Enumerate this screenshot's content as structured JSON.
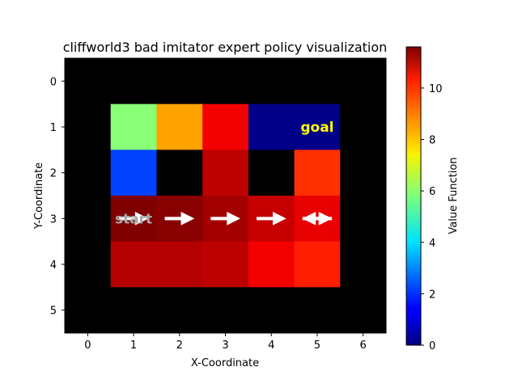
{
  "chart_data": {
    "type": "heatmap",
    "title": "cliffworld3 bad imitator expert policy visualization",
    "xlabel": "X-Coordinate",
    "ylabel": "Y-Coordinate",
    "x_ticks": [
      "0",
      "1",
      "2",
      "3",
      "4",
      "5",
      "6"
    ],
    "y_ticks": [
      "0",
      "1",
      "2",
      "3",
      "4",
      "5"
    ],
    "colormap": "jet",
    "colorbar": {
      "label": "Value Function",
      "range": [
        0,
        11.6
      ],
      "ticks": [
        "0",
        "2",
        "4",
        "6",
        "8",
        "10"
      ]
    },
    "grid": {
      "cols": 7,
      "rows": 6,
      "blocked_color": "#000000",
      "values": [
        [
          null,
          null,
          null,
          null,
          null,
          null,
          null
        ],
        [
          null,
          5.9,
          8.3,
          10.3,
          0.1,
          0.1,
          null
        ],
        [
          null,
          2.2,
          null,
          10.9,
          null,
          9.6,
          null
        ],
        [
          null,
          11.6,
          11.5,
          11.2,
          10.8,
          10.4,
          null
        ],
        [
          null,
          11.0,
          11.0,
          10.9,
          10.3,
          9.8,
          null
        ],
        [
          null,
          null,
          null,
          null,
          null,
          null,
          null
        ]
      ]
    },
    "annotations": [
      {
        "text": "goal",
        "x": 5,
        "y": 1,
        "color": "#ffff00"
      },
      {
        "text": "start",
        "x": 1,
        "y": 3,
        "color": "#a9a9a9"
      }
    ],
    "policy_arrows": [
      {
        "x": 1,
        "y": 3,
        "direction": "right"
      },
      {
        "x": 2,
        "y": 3,
        "direction": "right"
      },
      {
        "x": 3,
        "y": 3,
        "direction": "right"
      },
      {
        "x": 4,
        "y": 3,
        "direction": "right"
      },
      {
        "x": 5,
        "y": 3,
        "direction": "left"
      },
      {
        "x": 5,
        "y": 3,
        "direction": "right"
      }
    ]
  }
}
